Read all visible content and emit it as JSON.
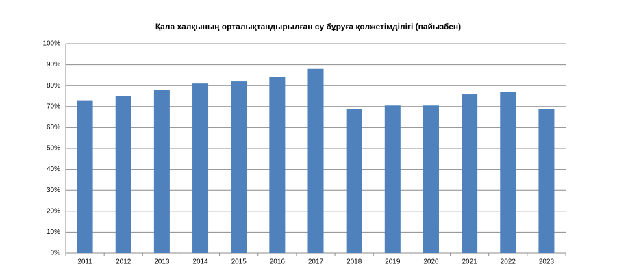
{
  "chart_data": {
    "type": "bar",
    "title": "Қала халқының орталықтандырылған су  бұруға қолжетімділігі (пайызбен)",
    "categories": [
      "2011",
      "2012",
      "2013",
      "2014",
      "2015",
      "2016",
      "2017",
      "2018",
      "2019",
      "2020",
      "2021",
      "2022",
      "2023"
    ],
    "values": [
      73,
      75,
      78,
      81,
      82,
      84,
      88,
      68.7,
      70.5,
      70.5,
      75.8,
      77,
      68.7
    ],
    "color": "#4f81bd",
    "ylim": [
      0,
      100
    ],
    "yticks": [
      {
        "value": 0,
        "label": "0%"
      },
      {
        "value": 10,
        "label": "10%"
      },
      {
        "value": 20,
        "label": "20%"
      },
      {
        "value": 30,
        "label": "30%"
      },
      {
        "value": 40,
        "label": "40%"
      },
      {
        "value": 50,
        "label": "50%"
      },
      {
        "value": 60,
        "label": "60%"
      },
      {
        "value": 70,
        "label": "70%"
      },
      {
        "value": 80,
        "label": "80%"
      },
      {
        "value": 90,
        "label": "90%"
      },
      {
        "value": 100,
        "label": "100%"
      }
    ],
    "grid": true
  }
}
